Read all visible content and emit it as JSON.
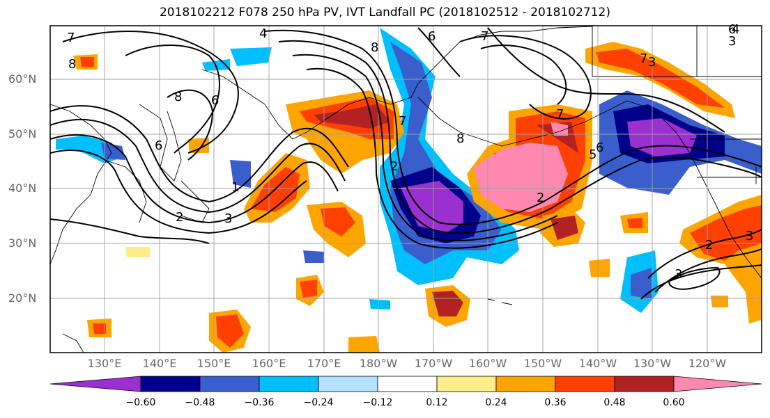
{
  "title": "2018102212 F078 250 hPa PV, IVT Landfall PC (2018102512 - 2018102712)",
  "lat_labels": [
    "60°N",
    "50°N",
    "40°N",
    "30°N",
    "20°N"
  ],
  "lon_labels": [
    "130°E",
    "140°E",
    "150°E",
    "160°E",
    "170°E",
    "180°W",
    "170°W",
    "160°W",
    "150°W",
    "140°W",
    "130°W",
    "120°W"
  ],
  "colorbar": {
    "tick_labels": [
      "−0.60",
      "−0.48",
      "−0.36",
      "−0.24",
      "−0.12",
      "0.12",
      "0.24",
      "0.36",
      "0.48",
      "0.60"
    ],
    "colors": [
      "#9b30d0",
      "#00008b",
      "#3a5fcd",
      "#00bfff",
      "#b2e2ff",
      "#ffffff",
      "#ffec8b",
      "#ffa500",
      "#ff4000",
      "#b22222",
      "#ff88b0"
    ]
  },
  "contour_labels": [
    "7",
    "4",
    "6",
    "8",
    "7",
    "6",
    "8",
    "6",
    "8",
    "7",
    "2",
    "3",
    "8",
    "7",
    "2",
    "1",
    "3",
    "6",
    "7",
    "2",
    "3",
    "5",
    "6",
    "2",
    "3",
    "4",
    "3"
  ]
}
